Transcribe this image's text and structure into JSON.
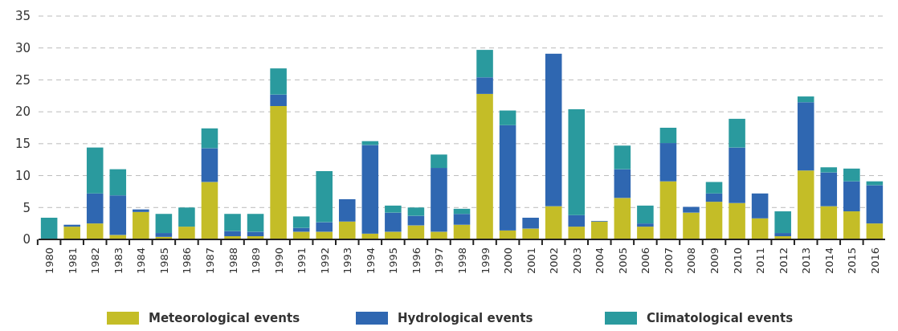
{
  "chart_data": {
    "type": "bar",
    "stacked": true,
    "categories": [
      "1980",
      "1981",
      "1982",
      "1983",
      "1984",
      "1985",
      "1986",
      "1987",
      "1988",
      "1989",
      "1990",
      "1991",
      "1992",
      "1993",
      "1994",
      "1995",
      "1996",
      "1997",
      "1998",
      "1999",
      "2000",
      "2001",
      "2002",
      "2003",
      "2004",
      "2005",
      "2006",
      "2007",
      "2008",
      "2009",
      "2010",
      "2011",
      "2012",
      "2013",
      "2014",
      "2015",
      "2016"
    ],
    "series": [
      {
        "name": "Meteorological events",
        "color": "#c4bd27",
        "values": [
          0,
          2.0,
          2.5,
          0.7,
          4.3,
          0.4,
          2.0,
          9.0,
          0.5,
          0.5,
          20.9,
          1.2,
          1.2,
          2.8,
          0.9,
          1.2,
          2.2,
          1.2,
          2.3,
          22.8,
          1.4,
          1.7,
          5.2,
          2.0,
          2.8,
          6.5,
          2.0,
          9.1,
          4.2,
          5.9,
          5.7,
          3.3,
          0.5,
          10.8,
          5.2,
          4.4,
          2.5
        ]
      },
      {
        "name": "Hydrological events",
        "color": "#2f67b1",
        "values": [
          0,
          0.3,
          4.7,
          6.2,
          0.4,
          0.6,
          0,
          5.3,
          0.8,
          0.7,
          1.8,
          0.6,
          1.5,
          3.5,
          13.9,
          3.0,
          1.5,
          10.0,
          1.7,
          2.6,
          16.5,
          1.7,
          23.9,
          1.8,
          0.1,
          4.5,
          0.5,
          6.0,
          0.9,
          1.3,
          8.7,
          3.9,
          0.5,
          10.7,
          5.3,
          4.7,
          6.0
        ]
      },
      {
        "name": "Climatological events",
        "color": "#2a9a9e",
        "values": [
          3.4,
          0,
          7.2,
          4.1,
          0,
          3.0,
          3.0,
          3.1,
          2.7,
          2.8,
          4.1,
          1.8,
          8.0,
          0,
          0.6,
          1.1,
          1.3,
          2.1,
          0.8,
          4.3,
          2.3,
          0,
          0,
          16.6,
          0,
          3.7,
          2.8,
          2.4,
          0,
          1.8,
          4.5,
          0,
          3.4,
          0.9,
          0.8,
          2.0,
          0.6
        ]
      }
    ],
    "ylim": [
      0,
      35
    ],
    "yticks": [
      0,
      5,
      10,
      15,
      20,
      25,
      30,
      35
    ],
    "grid": "y",
    "legend": "bottom"
  }
}
